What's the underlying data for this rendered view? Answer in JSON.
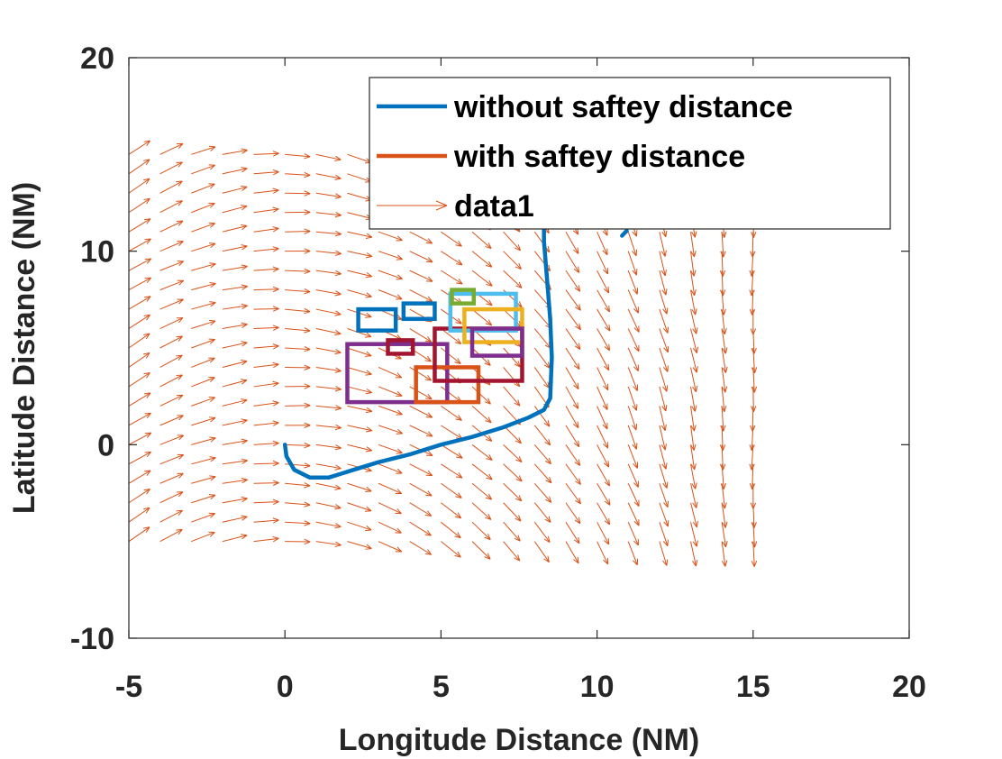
{
  "chart_data": {
    "type": "line",
    "title": "",
    "xlabel": "Longitude Distance (NM)",
    "ylabel": "Latitude Distance (NM)",
    "xlim": [
      -5,
      20
    ],
    "ylim": [
      -10,
      20
    ],
    "xticks": [
      "-5",
      "0",
      "5",
      "10",
      "15",
      "20"
    ],
    "yticks": [
      "-10",
      "0",
      "10",
      "20"
    ],
    "grid": false,
    "legend_position": "top-right",
    "legend": [
      {
        "label": "without saftey distance",
        "kind": "line",
        "color": "#0072BD"
      },
      {
        "label": "with saftey distance",
        "kind": "line",
        "color": "#D95319"
      },
      {
        "label": "data1",
        "kind": "quiver",
        "color": "#D95319"
      }
    ],
    "series": [
      {
        "name": "without saftey distance",
        "color": "#0072BD",
        "x": [
          0,
          0.05,
          0.3,
          0.8,
          1.4,
          2.2,
          3.0,
          4.0,
          5.0,
          6.0,
          7.0,
          7.8,
          8.3,
          8.5,
          8.55,
          8.5,
          8.4,
          8.3,
          8.3
        ],
        "y": [
          0,
          -0.6,
          -1.3,
          -1.7,
          -1.7,
          -1.3,
          -0.9,
          -0.5,
          0.0,
          0.4,
          0.9,
          1.4,
          1.8,
          2.4,
          4.5,
          6.5,
          8.5,
          10.5,
          11.5
        ]
      },
      {
        "name": "without saftey distance (segment)",
        "color": "#0072BD",
        "x": [
          10.8,
          10.95
        ],
        "y": [
          10.8,
          11.05
        ]
      }
    ],
    "obstacles": [
      {
        "color": "#7E2F8E",
        "x": [
          2.0,
          5.2
        ],
        "y": [
          2.2,
          5.2
        ]
      },
      {
        "color": "#D95319",
        "x": [
          4.2,
          6.2
        ],
        "y": [
          2.2,
          4.0
        ]
      },
      {
        "color": "#A2142F",
        "x": [
          4.8,
          7.6
        ],
        "y": [
          3.3,
          6.0
        ]
      },
      {
        "color": "#A2142F",
        "x": [
          3.3,
          4.1
        ],
        "y": [
          4.7,
          5.4
        ]
      },
      {
        "color": "#0072BD",
        "x": [
          2.35,
          3.55
        ],
        "y": [
          5.9,
          7.0
        ]
      },
      {
        "color": "#0072BD",
        "x": [
          3.8,
          4.8
        ],
        "y": [
          6.5,
          7.3
        ]
      },
      {
        "color": "#4DBEEE",
        "x": [
          5.3,
          7.4
        ],
        "y": [
          5.9,
          7.8
        ]
      },
      {
        "color": "#EDB120",
        "x": [
          5.75,
          7.6
        ],
        "y": [
          5.3,
          7.0
        ]
      },
      {
        "color": "#7E2F8E",
        "x": [
          6.0,
          7.6
        ],
        "y": [
          4.6,
          6.0
        ]
      },
      {
        "color": "#77AC30",
        "x": [
          5.35,
          6.05
        ],
        "y": [
          7.3,
          8.0
        ]
      }
    ],
    "vector_field": {
      "name": "data1",
      "color": "#D95319",
      "x_range": [
        -5,
        15
      ],
      "x_step": 1,
      "y_range": [
        -5,
        15
      ],
      "y_step": 1,
      "description": "arrows turning from up-right (x=-5) to down-right (x=5) to straight down (x=15)"
    }
  }
}
